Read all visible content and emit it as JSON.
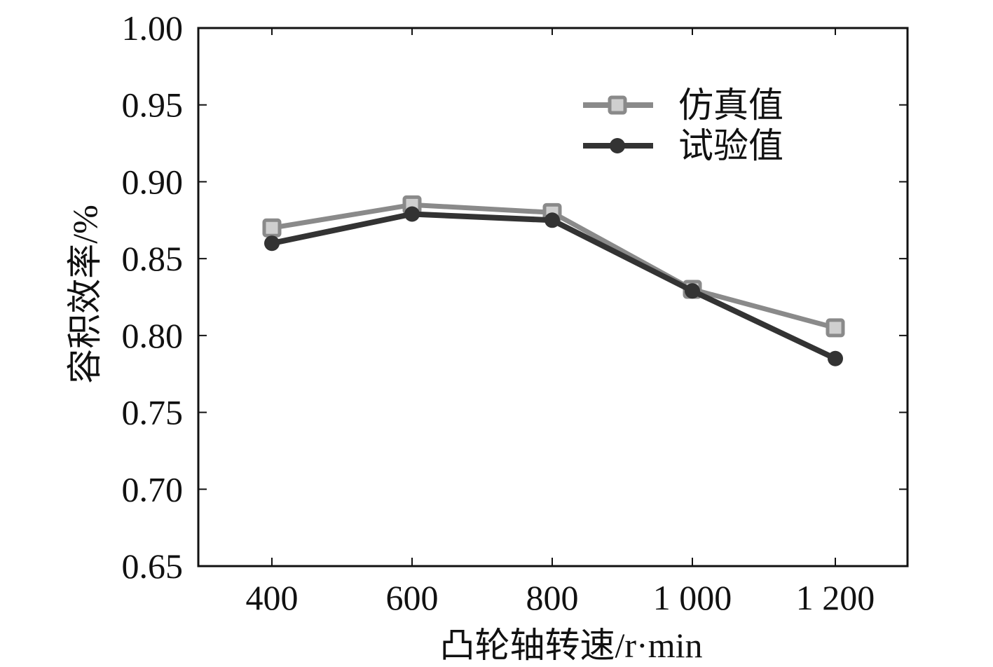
{
  "chart_data": {
    "type": "line",
    "xlabel": "凸轮轴转速/r·min",
    "ylabel": "容积效率/%",
    "categories": [
      "400",
      "600",
      "800",
      "1 000",
      "1 200"
    ],
    "x": [
      400,
      600,
      800,
      1000,
      1200
    ],
    "ylim": [
      0.65,
      1.0
    ],
    "yticks": [
      "0.65",
      "0.70",
      "0.75",
      "0.80",
      "0.85",
      "0.90",
      "0.95",
      "1.00"
    ],
    "ytick_values": [
      0.65,
      0.7,
      0.75,
      0.8,
      0.85,
      0.9,
      0.95,
      1.0
    ],
    "grid": false,
    "legend_position": "top-right",
    "series": [
      {
        "name": "仿真值",
        "values": [
          0.87,
          0.885,
          0.88,
          0.83,
          0.805
        ],
        "color": "#8a8a8a",
        "marker": "square"
      },
      {
        "name": "试验值",
        "values": [
          0.86,
          0.879,
          0.875,
          0.829,
          0.785
        ],
        "color": "#333333",
        "marker": "circle"
      }
    ]
  }
}
